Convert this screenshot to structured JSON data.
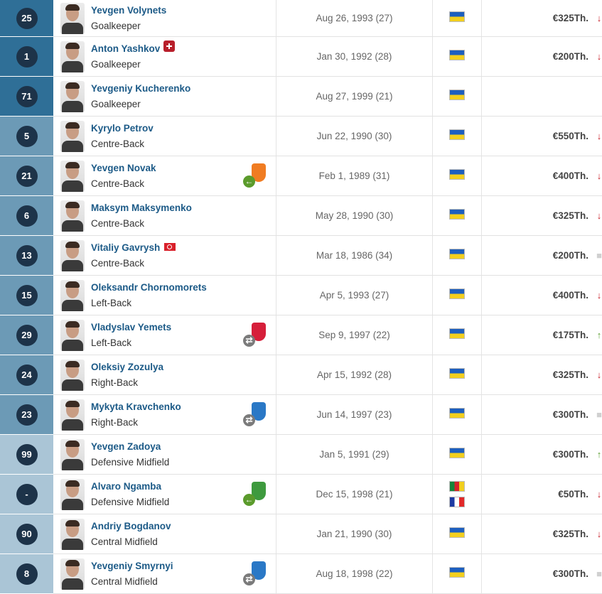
{
  "squad": {
    "rows": [
      {
        "number": "25",
        "name": "Yevgen Volynets",
        "position": "Goalkeeper",
        "dob": "Aug 26, 1993 (27)",
        "nationality_flags": [
          "ukraine-flag-icon"
        ],
        "value": "€325Th.",
        "trend": "down",
        "group": "GK"
      },
      {
        "number": "1",
        "name": "Anton Yashkov",
        "position": "Goalkeeper",
        "dob": "Jan 30, 1992 (28)",
        "nationality_flags": [
          "ukraine-flag-icon"
        ],
        "value": "€200Th.",
        "trend": "down",
        "group": "GK",
        "status_icon": "injury-icon"
      },
      {
        "number": "71",
        "name": "Yevgeniy Kucherenko",
        "position": "Goalkeeper",
        "dob": "Aug 27, 1999 (21)",
        "nationality_flags": [
          "ukraine-flag-icon"
        ],
        "value": "",
        "trend": "",
        "group": "GK"
      },
      {
        "number": "5",
        "name": "Kyrylo Petrov",
        "position": "Centre-Back",
        "dob": "Jun 22, 1990 (30)",
        "nationality_flags": [
          "ukraine-flag-icon"
        ],
        "value": "€550Th.",
        "trend": "down",
        "group": "DEF"
      },
      {
        "number": "21",
        "name": "Yevgen Novak",
        "position": "Centre-Back",
        "dob": "Feb 1, 1989 (31)",
        "nationality_flags": [
          "ukraine-flag-icon"
        ],
        "value": "€400Th.",
        "trend": "down",
        "group": "DEF",
        "loan": {
          "arrow": "green",
          "crest_color": "#f07c22"
        }
      },
      {
        "number": "6",
        "name": "Maksym Maksymenko",
        "position": "Centre-Back",
        "dob": "May 28, 1990 (30)",
        "nationality_flags": [
          "ukraine-flag-icon"
        ],
        "value": "€325Th.",
        "trend": "down",
        "group": "DEF"
      },
      {
        "number": "13",
        "name": "Vitaliy Gavrysh",
        "position": "Centre-Back",
        "dob": "Mar 18, 1986 (34)",
        "nationality_flags": [
          "ukraine-flag-icon"
        ],
        "value": "€200Th.",
        "trend": "same",
        "group": "DEF",
        "status_icon": "turkey-flag-icon"
      },
      {
        "number": "15",
        "name": "Oleksandr Chornomorets",
        "position": "Left-Back",
        "dob": "Apr 5, 1993 (27)",
        "nationality_flags": [
          "ukraine-flag-icon"
        ],
        "value": "€400Th.",
        "trend": "down",
        "group": "DEF"
      },
      {
        "number": "29",
        "name": "Vladyslav Yemets",
        "position": "Left-Back",
        "dob": "Sep 9, 1997 (22)",
        "nationality_flags": [
          "ukraine-flag-icon"
        ],
        "value": "€175Th.",
        "trend": "up",
        "group": "DEF",
        "loan": {
          "arrow": "grey",
          "crest_color": "#d61f3a"
        }
      },
      {
        "number": "24",
        "name": "Oleksiy Zozulya",
        "position": "Right-Back",
        "dob": "Apr 15, 1992 (28)",
        "nationality_flags": [
          "ukraine-flag-icon"
        ],
        "value": "€325Th.",
        "trend": "down",
        "group": "DEF"
      },
      {
        "number": "23",
        "name": "Mykyta Kravchenko",
        "position": "Right-Back",
        "dob": "Jun 14, 1997 (23)",
        "nationality_flags": [
          "ukraine-flag-icon"
        ],
        "value": "€300Th.",
        "trend": "same",
        "group": "DEF",
        "loan": {
          "arrow": "grey",
          "crest_color": "#2a78c6"
        }
      },
      {
        "number": "99",
        "name": "Yevgen Zadoya",
        "position": "Defensive Midfield",
        "dob": "Jan 5, 1991 (29)",
        "nationality_flags": [
          "ukraine-flag-icon"
        ],
        "value": "€300Th.",
        "trend": "up",
        "group": "MID"
      },
      {
        "number": "-",
        "name": "Alvaro Ngamba",
        "position": "Defensive Midfield",
        "dob": "Dec 15, 1998 (21)",
        "nationality_flags": [
          "cameroon-flag-icon",
          "france-flag-icon"
        ],
        "value": "€50Th.",
        "trend": "down",
        "group": "MID",
        "loan": {
          "arrow": "green",
          "crest_color": "#3e9a3e"
        }
      },
      {
        "number": "90",
        "name": "Andriy Bogdanov",
        "position": "Central Midfield",
        "dob": "Jan 21, 1990 (30)",
        "nationality_flags": [
          "ukraine-flag-icon"
        ],
        "value": "€325Th.",
        "trend": "down",
        "group": "MID"
      },
      {
        "number": "8",
        "name": "Yevgeniy Smyrnyi",
        "position": "Central Midfield",
        "dob": "Aug 18, 1998 (22)",
        "nationality_flags": [
          "ukraine-flag-icon"
        ],
        "value": "€300Th.",
        "trend": "same",
        "group": "MID",
        "loan": {
          "arrow": "grey",
          "crest_color": "#2a78c6"
        }
      }
    ]
  },
  "colors": {
    "gk": "#2f6f97",
    "def": "#6c9ab6",
    "mid": "#aac5d6",
    "badge": "#1d3349",
    "link": "#1c5a87",
    "down": "#c8232c",
    "up": "#5c9e31"
  }
}
